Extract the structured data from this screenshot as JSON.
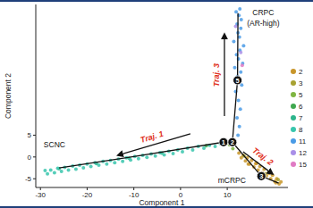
{
  "chart_data": {
    "type": "scatter",
    "x_label": "Component 1",
    "y_label": "Component 2",
    "xlim": [
      -31,
      23
    ],
    "ylim": [
      -7,
      35
    ],
    "xticks": [
      -30,
      -20,
      -10,
      0,
      10
    ],
    "yticks": [
      -5,
      0,
      5
    ],
    "grid": false,
    "legend": "right",
    "marker": "circle",
    "series": [
      {
        "name": "2",
        "color": "#c8962a",
        "x": [
          12.5,
          13,
          13.4,
          13.9,
          14.3,
          14.8,
          15.2,
          15.7,
          16.1,
          16.6,
          17,
          17.5,
          17.9,
          18.4,
          18.8,
          19.3,
          19.7,
          20.2,
          20.6,
          21.1,
          21.5,
          16.3,
          17.8,
          19,
          20.4,
          14.5
        ],
        "values": [
          0.9,
          -0.2,
          0.4,
          -0.9,
          -0.2,
          -1.6,
          -0.8,
          -2.3,
          -1.5,
          -3.0,
          -2.2,
          -3.6,
          -2.8,
          -4.3,
          -3.6,
          -5.0,
          -4.2,
          -5.6,
          -5.0,
          -6.2,
          -5.7,
          -1.4,
          -4.0,
          -3.7,
          -5.9,
          -1.6
        ]
      },
      {
        "name": "3",
        "color": "#a8a232",
        "x": [
          13.6,
          18.1,
          20.9
        ],
        "values": [
          0.2,
          -3.9,
          -5.2
        ]
      },
      {
        "name": "5",
        "color": "#7fb541",
        "x": [
          10.5,
          11.2
        ],
        "values": [
          2.8,
          1.9
        ]
      },
      {
        "name": "6",
        "color": "#3fa84f",
        "x": [
          9.8,
          5.5
        ],
        "values": [
          3.3,
          2.6
        ]
      },
      {
        "name": "7",
        "color": "#2db58c",
        "x": [
          -26,
          -18,
          -11,
          -4
        ],
        "values": [
          -2.7,
          -1.5,
          -0.3,
          0.9
        ]
      },
      {
        "name": "8",
        "color": "#38c6ad",
        "x": [
          -29,
          -28.5,
          -27.8,
          -27,
          -26.3,
          -25.5,
          -24.8,
          -24,
          -23.1,
          -22.4,
          -21.6,
          -20.8,
          -20,
          -19.2,
          -18.3,
          -17.5,
          -16.6,
          -15.8,
          -15,
          -14.1,
          -13.3,
          -12.4,
          -11.6,
          -10.7,
          -9.8,
          -9,
          -8.1,
          -7.2,
          -6.3,
          -5.4,
          -4.4,
          -3.5,
          -2.5,
          -1.6,
          -0.6,
          0.4,
          1.5,
          2.6,
          3.8,
          5,
          6.2,
          7.4,
          8.5
        ],
        "values": [
          -3.1,
          -3.9,
          -3.0,
          -3.6,
          -2.6,
          -3.3,
          -2.4,
          -3.0,
          -2.1,
          -2.8,
          -1.9,
          -2.5,
          -1.6,
          -2.2,
          -1.3,
          -1.9,
          -1.0,
          -1.6,
          -0.8,
          -1.3,
          -0.5,
          -1.0,
          -0.2,
          -0.7,
          0.1,
          -0.4,
          0.4,
          -0.1,
          0.7,
          0.2,
          1.0,
          0.5,
          1.3,
          0.8,
          1.6,
          1.2,
          2.0,
          1.6,
          2.4,
          2.0,
          2.7,
          2.4,
          3.1
        ]
      },
      {
        "name": "11",
        "color": "#4a9be6",
        "x": [
          12.3,
          12.6,
          12.1,
          12.8,
          12.4,
          11.8,
          13.1,
          12.5,
          12.2,
          12.9,
          11.6,
          13.3,
          12.4,
          12.0,
          12.7,
          13.5,
          11.4,
          12.6,
          12.3,
          12.9,
          12.1,
          13.0,
          12.5,
          11.9,
          12.7
        ],
        "values": [
          5,
          7,
          9,
          11,
          13,
          15,
          16.5,
          17.5,
          18.5,
          19.5,
          20.5,
          21.5,
          22.5,
          23.5,
          24.5,
          25.5,
          26.5,
          27.5,
          28.5,
          29.5,
          30.5,
          31.5,
          32.5,
          33.3,
          34.0
        ]
      },
      {
        "name": "12",
        "color": "#a98fe8",
        "x": [
          12.9,
          11.8
        ],
        "values": [
          24,
          30
        ]
      },
      {
        "name": "15",
        "color": "#e07ac4",
        "x": [
          13.2
        ],
        "values": [
          21
        ]
      }
    ],
    "trajectory": [
      {
        "x": [
          -26,
          -10,
          9.2
        ],
        "y": [
          -2.5,
          0.1,
          3.4
        ]
      },
      {
        "x": [
          9.2,
          11.1
        ],
        "y": [
          3.4,
          3.4
        ]
      },
      {
        "x": [
          11.1,
          12.2,
          12.3
        ],
        "y": [
          3.4,
          17.6,
          33
        ]
      },
      {
        "x": [
          11.1,
          17.3,
          21
        ],
        "y": [
          3.4,
          -4.4,
          -6
        ]
      }
    ],
    "branch_points": [
      {
        "label": "1",
        "x": 9.2,
        "y": 3.4
      },
      {
        "label": "2",
        "x": 11.1,
        "y": 3.4
      },
      {
        "label": "3",
        "x": 17.3,
        "y": -4.4
      },
      {
        "label": "5",
        "x": 12.2,
        "y": 17.6
      }
    ],
    "arrows": [
      {
        "label": "Traj. 1",
        "x": [
          2.1,
          -13.4
        ],
        "y": [
          5.3,
          0.4
        ]
      },
      {
        "label": "Traj. 2",
        "x": [
          13.4,
          19.7
        ],
        "y": [
          1.2,
          -3.9
        ]
      },
      {
        "label": "Traj. 3",
        "x": [
          9.4,
          9.4
        ],
        "y": [
          9.4,
          28.2
        ]
      }
    ],
    "annotations": [
      {
        "text": "CRPC",
        "x": 17.7,
        "y": 32.6
      },
      {
        "text": "(AR-high)",
        "x": 17.7,
        "y": 30.0
      },
      {
        "text": "SCNC",
        "x": -27,
        "y": 2.2
      },
      {
        "text": "mCRPC",
        "x": 11,
        "y": -5.9
      }
    ]
  }
}
